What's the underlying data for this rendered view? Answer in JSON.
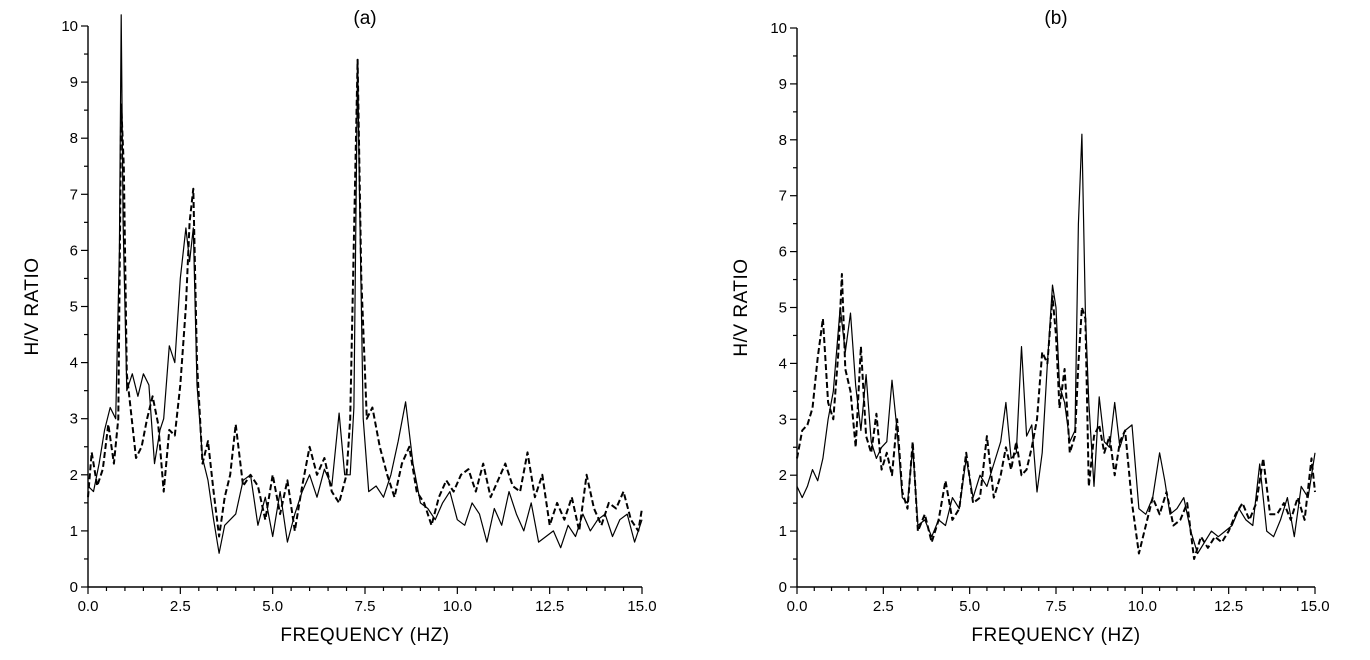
{
  "chart_data": [
    {
      "type": "line",
      "title": "(a)",
      "xlabel": "FREQUENCY (HZ)",
      "ylabel": "H/V RATIO",
      "xlim": [
        0,
        15
      ],
      "ylim": [
        0,
        10
      ],
      "xticks": [
        0,
        2.5,
        5,
        7.5,
        10,
        12.5,
        15
      ],
      "xtick_labels": [
        "0.0",
        "2.5",
        "5.0",
        "7.5",
        "10.0",
        "12.5",
        "15.0"
      ],
      "yticks": [
        0,
        1,
        2,
        3,
        4,
        5,
        6,
        7,
        8,
        9,
        10
      ],
      "ytick_labels": [
        "0",
        "1",
        "2",
        "3",
        "4",
        "5",
        "6",
        "7",
        "8",
        "9",
        "10"
      ],
      "grid": false,
      "series": [
        {
          "style": "solid",
          "x": [
            0,
            0.15,
            0.3,
            0.45,
            0.6,
            0.75,
            0.85,
            0.9,
            0.95,
            1.05,
            1.2,
            1.35,
            1.5,
            1.65,
            1.8,
            1.95,
            2.05,
            2.2,
            2.35,
            2.5,
            2.65,
            2.75,
            2.85,
            2.95,
            3.1,
            3.25,
            3.4,
            3.55,
            3.7,
            3.85,
            4.0,
            4.2,
            4.4,
            4.6,
            4.8,
            5.0,
            5.2,
            5.4,
            5.6,
            5.8,
            6.0,
            6.2,
            6.4,
            6.6,
            6.8,
            6.95,
            7.1,
            7.2,
            7.3,
            7.35,
            7.45,
            7.6,
            7.8,
            8.0,
            8.2,
            8.4,
            8.6,
            8.8,
            9.0,
            9.2,
            9.4,
            9.6,
            9.8,
            10.0,
            10.2,
            10.4,
            10.6,
            10.8,
            11.0,
            11.2,
            11.4,
            11.6,
            11.8,
            12.0,
            12.2,
            12.4,
            12.6,
            12.8,
            13.0,
            13.2,
            13.4,
            13.6,
            13.8,
            14.0,
            14.2,
            14.4,
            14.6,
            14.8,
            15.0
          ],
          "y": [
            1.8,
            1.7,
            2.2,
            2.8,
            3.2,
            3.0,
            6.0,
            10.2,
            6.5,
            3.5,
            3.8,
            3.4,
            3.8,
            3.6,
            2.2,
            2.8,
            3.0,
            4.3,
            4.0,
            5.5,
            6.4,
            5.8,
            6.4,
            3.6,
            2.3,
            1.9,
            1.2,
            0.6,
            1.1,
            1.2,
            1.3,
            1.9,
            2.0,
            1.1,
            1.6,
            0.9,
            1.7,
            0.8,
            1.3,
            1.7,
            2.0,
            1.6,
            2.1,
            1.8,
            3.1,
            2.0,
            2.0,
            3.2,
            9.4,
            7.0,
            3.0,
            1.7,
            1.8,
            1.6,
            2.0,
            2.6,
            3.3,
            2.2,
            1.5,
            1.4,
            1.2,
            1.5,
            1.7,
            1.2,
            1.1,
            1.5,
            1.3,
            0.8,
            1.4,
            1.1,
            1.7,
            1.3,
            1.0,
            1.5,
            0.8,
            0.9,
            1.0,
            0.7,
            1.1,
            0.9,
            1.3,
            1.0,
            1.2,
            1.3,
            0.9,
            1.2,
            1.3,
            0.8,
            1.2
          ]
        },
        {
          "style": "dashed",
          "x": [
            0,
            0.1,
            0.25,
            0.4,
            0.55,
            0.7,
            0.82,
            0.9,
            0.97,
            1.05,
            1.15,
            1.3,
            1.45,
            1.6,
            1.75,
            1.9,
            2.05,
            2.2,
            2.35,
            2.5,
            2.65,
            2.75,
            2.85,
            2.95,
            3.1,
            3.25,
            3.4,
            3.55,
            3.7,
            3.85,
            4.0,
            4.2,
            4.4,
            4.6,
            4.8,
            5.0,
            5.2,
            5.4,
            5.6,
            5.8,
            6.0,
            6.2,
            6.4,
            6.6,
            6.8,
            7.0,
            7.1,
            7.2,
            7.3,
            7.4,
            7.55,
            7.7,
            7.9,
            8.1,
            8.3,
            8.5,
            8.7,
            8.9,
            9.1,
            9.3,
            9.5,
            9.7,
            9.9,
            10.1,
            10.3,
            10.5,
            10.7,
            10.9,
            11.1,
            11.3,
            11.5,
            11.7,
            11.9,
            12.1,
            12.3,
            12.5,
            12.7,
            12.9,
            13.1,
            13.3,
            13.5,
            13.7,
            13.9,
            14.1,
            14.3,
            14.5,
            14.7,
            14.9,
            15.0
          ],
          "y": [
            1.6,
            2.4,
            1.8,
            2.1,
            2.9,
            2.2,
            3.0,
            8.6,
            7.5,
            3.8,
            3.2,
            2.3,
            2.5,
            3.0,
            3.4,
            2.9,
            1.7,
            2.8,
            2.7,
            3.6,
            5.0,
            6.5,
            7.1,
            4.0,
            2.2,
            2.6,
            1.7,
            0.9,
            1.6,
            2.0,
            2.9,
            1.8,
            2.0,
            1.8,
            1.2,
            2.0,
            1.3,
            1.9,
            1.0,
            1.8,
            2.5,
            2.0,
            2.3,
            1.7,
            1.5,
            2.0,
            3.0,
            6.2,
            9.4,
            5.5,
            3.0,
            3.2,
            2.5,
            2.0,
            1.6,
            2.2,
            2.5,
            1.7,
            1.5,
            1.1,
            1.6,
            1.9,
            1.7,
            2.0,
            2.1,
            1.7,
            2.2,
            1.6,
            1.9,
            2.2,
            1.8,
            1.7,
            2.4,
            1.6,
            2.0,
            1.1,
            1.5,
            1.2,
            1.6,
            1.0,
            2.0,
            1.4,
            1.1,
            1.5,
            1.4,
            1.7,
            1.2,
            1.0,
            1.4
          ]
        }
      ]
    },
    {
      "type": "line",
      "title": "(b)",
      "xlabel": "FREQUENCY (HZ)",
      "ylabel": "H/V RATIO",
      "xlim": [
        0,
        15
      ],
      "ylim": [
        0,
        10
      ],
      "xticks": [
        0,
        2.5,
        5,
        7.5,
        10,
        12.5,
        15
      ],
      "xtick_labels": [
        "0.0",
        "2.5",
        "5.0",
        "7.5",
        "10.0",
        "12.5",
        "15.0"
      ],
      "yticks": [
        0,
        1,
        2,
        3,
        4,
        5,
        6,
        7,
        8,
        9,
        10
      ],
      "ytick_labels": [
        "0",
        "1",
        "2",
        "3",
        "4",
        "5",
        "6",
        "7",
        "8",
        "9",
        "10"
      ],
      "grid": false,
      "series": [
        {
          "style": "solid",
          "x": [
            0,
            0.15,
            0.3,
            0.45,
            0.6,
            0.75,
            0.9,
            1.05,
            1.25,
            1.4,
            1.55,
            1.7,
            1.85,
            2.0,
            2.15,
            2.3,
            2.45,
            2.6,
            2.75,
            2.9,
            3.05,
            3.2,
            3.35,
            3.5,
            3.7,
            3.9,
            4.1,
            4.3,
            4.5,
            4.7,
            4.9,
            5.1,
            5.3,
            5.5,
            5.7,
            5.9,
            6.05,
            6.2,
            6.35,
            6.5,
            6.65,
            6.8,
            6.95,
            7.1,
            7.25,
            7.4,
            7.5,
            7.6,
            7.75,
            7.9,
            8.05,
            8.15,
            8.25,
            8.35,
            8.45,
            8.6,
            8.75,
            8.9,
            9.05,
            9.2,
            9.35,
            9.5,
            9.7,
            9.9,
            10.1,
            10.3,
            10.5,
            10.65,
            10.8,
            11.0,
            11.2,
            11.4,
            11.6,
            11.8,
            12.0,
            12.2,
            12.4,
            12.6,
            12.8,
            13.0,
            13.2,
            13.4,
            13.6,
            13.8,
            14.0,
            14.2,
            14.4,
            14.6,
            14.8,
            15.0
          ],
          "y": [
            1.8,
            1.6,
            1.8,
            2.1,
            1.9,
            2.3,
            3.0,
            3.5,
            5.0,
            4.2,
            4.9,
            3.6,
            2.8,
            3.8,
            2.6,
            2.3,
            2.5,
            2.6,
            3.7,
            2.8,
            1.6,
            1.5,
            2.5,
            1.1,
            1.2,
            0.9,
            1.2,
            1.1,
            1.6,
            1.4,
            2.3,
            1.6,
            2.0,
            1.8,
            2.2,
            2.6,
            3.3,
            2.3,
            2.4,
            4.3,
            2.7,
            2.9,
            1.7,
            2.4,
            4.0,
            5.4,
            5.0,
            3.6,
            3.3,
            2.6,
            2.8,
            6.5,
            8.1,
            4.9,
            3.3,
            1.8,
            3.4,
            2.6,
            2.5,
            3.3,
            2.5,
            2.8,
            2.9,
            1.4,
            1.3,
            1.6,
            2.4,
            1.9,
            1.3,
            1.4,
            1.6,
            1.0,
            0.6,
            0.8,
            1.0,
            0.9,
            1.0,
            1.1,
            1.4,
            1.2,
            1.1,
            2.2,
            1.0,
            0.9,
            1.2,
            1.6,
            0.9,
            1.8,
            1.6,
            2.4
          ]
        },
        {
          "style": "dashed",
          "x": [
            0,
            0.15,
            0.3,
            0.45,
            0.6,
            0.75,
            0.9,
            1.05,
            1.2,
            1.3,
            1.4,
            1.55,
            1.7,
            1.85,
            2.0,
            2.15,
            2.3,
            2.45,
            2.6,
            2.75,
            2.9,
            3.05,
            3.2,
            3.35,
            3.5,
            3.7,
            3.9,
            4.1,
            4.3,
            4.5,
            4.7,
            4.9,
            5.1,
            5.3,
            5.5,
            5.7,
            5.9,
            6.05,
            6.2,
            6.35,
            6.5,
            6.65,
            6.8,
            6.95,
            7.1,
            7.25,
            7.4,
            7.5,
            7.6,
            7.75,
            7.9,
            8.05,
            8.15,
            8.25,
            8.35,
            8.45,
            8.6,
            8.75,
            8.9,
            9.05,
            9.2,
            9.35,
            9.5,
            9.7,
            9.9,
            10.1,
            10.3,
            10.5,
            10.7,
            10.9,
            11.1,
            11.3,
            11.5,
            11.7,
            11.9,
            12.1,
            12.3,
            12.5,
            12.7,
            12.9,
            13.1,
            13.3,
            13.5,
            13.7,
            13.9,
            14.1,
            14.3,
            14.5,
            14.7,
            14.9,
            15.0
          ],
          "y": [
            2.3,
            2.8,
            2.9,
            3.2,
            4.1,
            4.8,
            3.3,
            3.0,
            4.2,
            5.6,
            3.9,
            3.5,
            2.5,
            4.3,
            2.7,
            2.4,
            3.1,
            2.1,
            2.4,
            2.0,
            3.0,
            1.7,
            1.4,
            2.6,
            1.0,
            1.3,
            0.8,
            1.2,
            1.9,
            1.2,
            1.4,
            2.4,
            1.5,
            1.6,
            2.7,
            1.6,
            2.0,
            2.5,
            2.1,
            2.6,
            2.0,
            2.1,
            2.5,
            3.0,
            4.2,
            4.0,
            5.2,
            4.5,
            3.2,
            3.9,
            2.4,
            2.7,
            4.0,
            5.0,
            4.8,
            1.8,
            2.7,
            2.9,
            2.4,
            2.7,
            2.0,
            2.6,
            2.8,
            1.5,
            0.6,
            1.1,
            1.6,
            1.3,
            1.7,
            1.1,
            1.2,
            1.5,
            0.5,
            0.9,
            0.7,
            0.9,
            0.8,
            1.0,
            1.3,
            1.5,
            1.2,
            1.5,
            2.3,
            1.3,
            1.3,
            1.5,
            1.2,
            1.6,
            1.2,
            2.3,
            1.7
          ]
        }
      ]
    }
  ]
}
